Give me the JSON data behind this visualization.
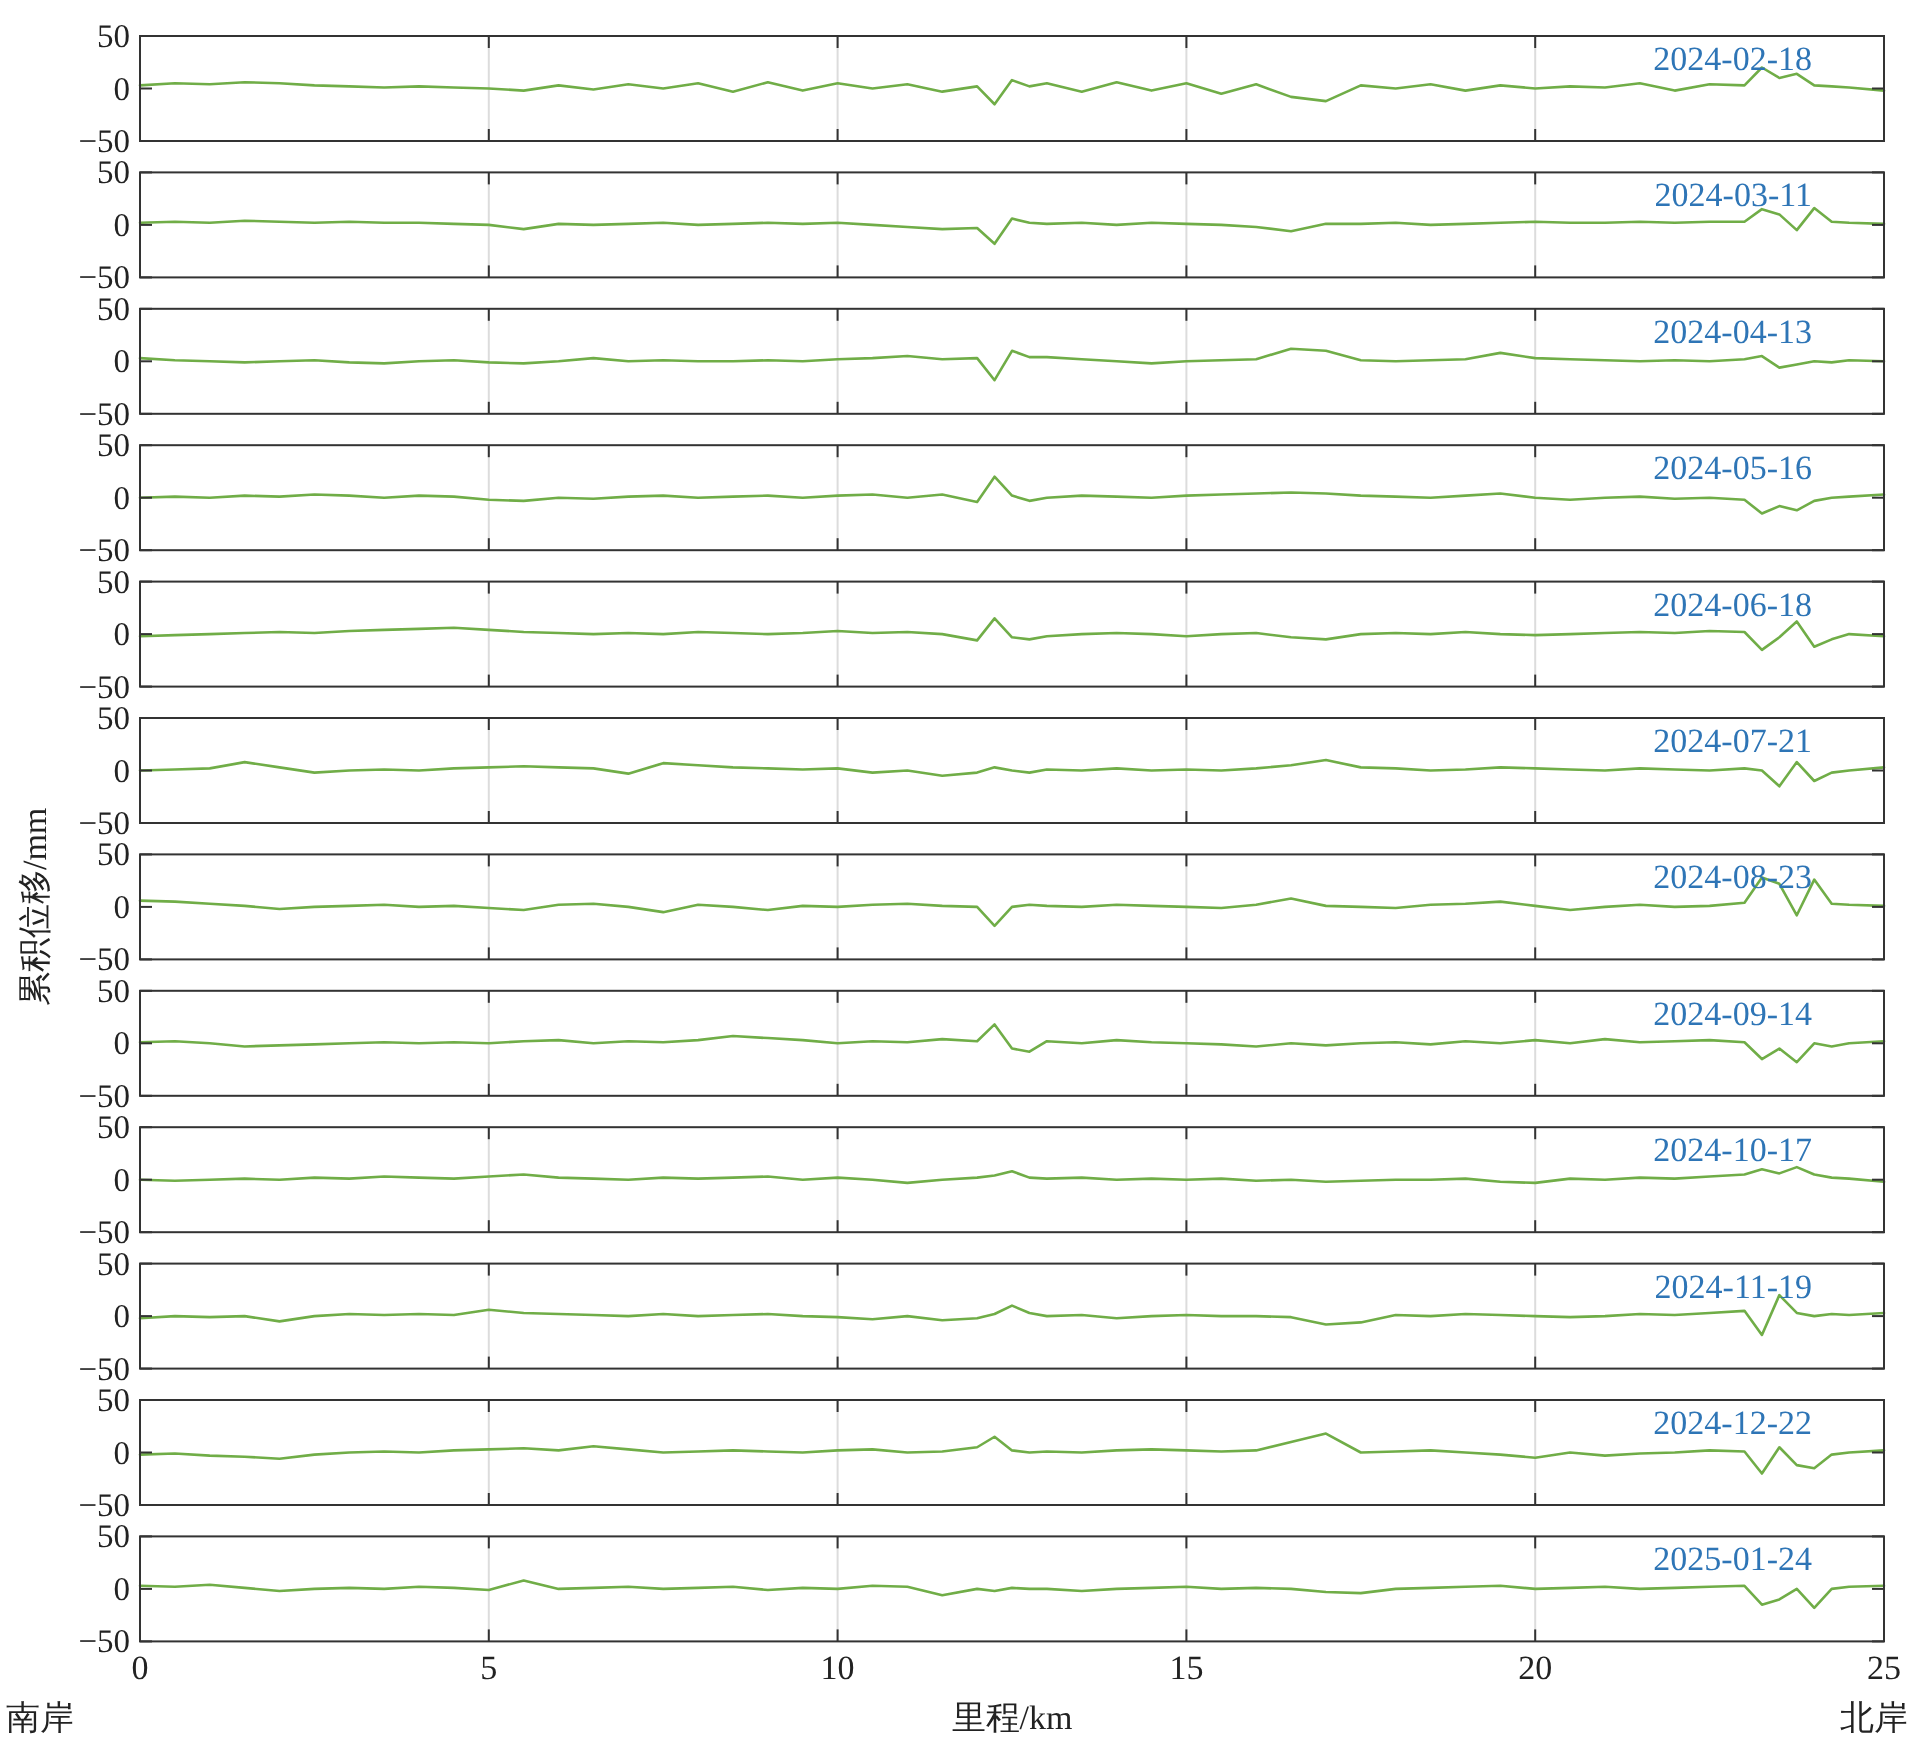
{
  "chart_data": [
    {
      "type": "line",
      "x": [
        0,
        0.5,
        1,
        1.5,
        2,
        2.5,
        3,
        3.5,
        4,
        4.5,
        5,
        5.5,
        6,
        6.5,
        7,
        7.5,
        8,
        8.5,
        9,
        9.5,
        10,
        10.5,
        11,
        11.5,
        12,
        12.25,
        12.5,
        12.75,
        13,
        13.5,
        14,
        14.5,
        15,
        15.5,
        16,
        16.5,
        17,
        17.5,
        18,
        18.5,
        19,
        19.5,
        20,
        20.5,
        21,
        21.5,
        22,
        22.5,
        23,
        23.25,
        23.5,
        23.75,
        24,
        24.25,
        24.5,
        25
      ],
      "xlim": [
        0,
        25
      ],
      "ylim": [
        -50,
        50
      ],
      "xticks": [
        0,
        5,
        10,
        15,
        20,
        25
      ],
      "yticks": [
        -50,
        0,
        50
      ],
      "grid": "x",
      "tick_labels": "y",
      "annotations": [
        "2024-02-18"
      ],
      "series": [
        {
          "color": "#70ad47",
          "values": [
            3,
            5,
            4,
            6,
            5,
            3,
            2,
            1,
            2,
            1,
            0,
            -2,
            3,
            -1,
            4,
            0,
            5,
            -3,
            6,
            -2,
            5,
            0,
            4,
            -3,
            2,
            -15,
            8,
            2,
            5,
            -3,
            6,
            -2,
            5,
            -5,
            4,
            -8,
            -12,
            3,
            0,
            4,
            -2,
            3,
            0,
            2,
            1,
            5,
            -2,
            4,
            3,
            20,
            10,
            14,
            3,
            2,
            1,
            -2
          ]
        }
      ]
    },
    {
      "type": "line",
      "x": [
        0,
        0.5,
        1,
        1.5,
        2,
        2.5,
        3,
        3.5,
        4,
        4.5,
        5,
        5.5,
        6,
        6.5,
        7,
        7.5,
        8,
        8.5,
        9,
        9.5,
        10,
        10.5,
        11,
        11.5,
        12,
        12.25,
        12.5,
        12.75,
        13,
        13.5,
        14,
        14.5,
        15,
        15.5,
        16,
        16.5,
        17,
        17.5,
        18,
        18.5,
        19,
        19.5,
        20,
        20.5,
        21,
        21.5,
        22,
        22.5,
        23,
        23.25,
        23.5,
        23.75,
        24,
        24.25,
        24.5,
        25
      ],
      "xlim": [
        0,
        25
      ],
      "ylim": [
        -50,
        50
      ],
      "xticks": [
        0,
        5,
        10,
        15,
        20,
        25
      ],
      "yticks": [
        -50,
        0,
        50
      ],
      "grid": "x",
      "tick_labels": "y",
      "annotations": [
        "2024-03-11"
      ],
      "series": [
        {
          "color": "#70ad47",
          "values": [
            2,
            3,
            2,
            4,
            3,
            2,
            3,
            2,
            2,
            1,
            0,
            -4,
            1,
            0,
            1,
            2,
            0,
            1,
            2,
            1,
            2,
            0,
            -2,
            -4,
            -3,
            -18,
            6,
            2,
            1,
            2,
            0,
            2,
            1,
            0,
            -2,
            -6,
            1,
            1,
            2,
            0,
            1,
            2,
            3,
            2,
            2,
            3,
            2,
            3,
            3,
            15,
            10,
            -5,
            16,
            3,
            2,
            1
          ]
        }
      ]
    },
    {
      "type": "line",
      "x": [
        0,
        0.5,
        1,
        1.5,
        2,
        2.5,
        3,
        3.5,
        4,
        4.5,
        5,
        5.5,
        6,
        6.5,
        7,
        7.5,
        8,
        8.5,
        9,
        9.5,
        10,
        10.5,
        11,
        11.5,
        12,
        12.25,
        12.5,
        12.75,
        13,
        13.5,
        14,
        14.5,
        15,
        15.5,
        16,
        16.5,
        17,
        17.5,
        18,
        18.5,
        19,
        19.5,
        20,
        20.5,
        21,
        21.5,
        22,
        22.5,
        23,
        23.25,
        23.5,
        23.75,
        24,
        24.25,
        24.5,
        25
      ],
      "xlim": [
        0,
        25
      ],
      "ylim": [
        -50,
        50
      ],
      "xticks": [
        0,
        5,
        10,
        15,
        20,
        25
      ],
      "yticks": [
        -50,
        0,
        50
      ],
      "grid": "x",
      "tick_labels": "y",
      "annotations": [
        "2024-04-13"
      ],
      "series": [
        {
          "color": "#70ad47",
          "values": [
            3,
            1,
            0,
            -1,
            0,
            1,
            -1,
            -2,
            0,
            1,
            -1,
            -2,
            0,
            3,
            0,
            1,
            0,
            0,
            1,
            0,
            2,
            3,
            5,
            2,
            3,
            -18,
            10,
            4,
            4,
            2,
            0,
            -2,
            0,
            1,
            2,
            12,
            10,
            1,
            0,
            1,
            2,
            8,
            3,
            2,
            1,
            0,
            1,
            0,
            2,
            5,
            -6,
            -3,
            0,
            -1,
            1,
            0
          ]
        }
      ]
    },
    {
      "type": "line",
      "x": [
        0,
        0.5,
        1,
        1.5,
        2,
        2.5,
        3,
        3.5,
        4,
        4.5,
        5,
        5.5,
        6,
        6.5,
        7,
        7.5,
        8,
        8.5,
        9,
        9.5,
        10,
        10.5,
        11,
        11.5,
        12,
        12.25,
        12.5,
        12.75,
        13,
        13.5,
        14,
        14.5,
        15,
        15.5,
        16,
        16.5,
        17,
        17.5,
        18,
        18.5,
        19,
        19.5,
        20,
        20.5,
        21,
        21.5,
        22,
        22.5,
        23,
        23.25,
        23.5,
        23.75,
        24,
        24.25,
        24.5,
        25
      ],
      "xlim": [
        0,
        25
      ],
      "ylim": [
        -50,
        50
      ],
      "xticks": [
        0,
        5,
        10,
        15,
        20,
        25
      ],
      "yticks": [
        -50,
        0,
        50
      ],
      "grid": "x",
      "tick_labels": "y",
      "annotations": [
        "2024-05-16"
      ],
      "series": [
        {
          "color": "#70ad47",
          "values": [
            0,
            1,
            0,
            2,
            1,
            3,
            2,
            0,
            2,
            1,
            -2,
            -3,
            0,
            -1,
            1,
            2,
            0,
            1,
            2,
            0,
            2,
            3,
            0,
            3,
            -4,
            20,
            2,
            -3,
            0,
            2,
            1,
            0,
            2,
            3,
            4,
            5,
            4,
            2,
            1,
            0,
            2,
            4,
            0,
            -2,
            0,
            1,
            -1,
            0,
            -2,
            -15,
            -8,
            -12,
            -3,
            0,
            1,
            3
          ]
        }
      ]
    },
    {
      "type": "line",
      "x": [
        0,
        0.5,
        1,
        1.5,
        2,
        2.5,
        3,
        3.5,
        4,
        4.5,
        5,
        5.5,
        6,
        6.5,
        7,
        7.5,
        8,
        8.5,
        9,
        9.5,
        10,
        10.5,
        11,
        11.5,
        12,
        12.25,
        12.5,
        12.75,
        13,
        13.5,
        14,
        14.5,
        15,
        15.5,
        16,
        16.5,
        17,
        17.5,
        18,
        18.5,
        19,
        19.5,
        20,
        20.5,
        21,
        21.5,
        22,
        22.5,
        23,
        23.25,
        23.5,
        23.75,
        24,
        24.25,
        24.5,
        25
      ],
      "xlim": [
        0,
        25
      ],
      "ylim": [
        -50,
        50
      ],
      "xticks": [
        0,
        5,
        10,
        15,
        20,
        25
      ],
      "yticks": [
        -50,
        0,
        50
      ],
      "grid": "x",
      "tick_labels": "y",
      "annotations": [
        "2024-06-18"
      ],
      "series": [
        {
          "color": "#70ad47",
          "values": [
            -2,
            -1,
            0,
            1,
            2,
            1,
            3,
            4,
            5,
            6,
            4,
            2,
            1,
            0,
            1,
            0,
            2,
            1,
            0,
            1,
            3,
            1,
            2,
            0,
            -6,
            15,
            -3,
            -5,
            -2,
            0,
            1,
            0,
            -2,
            0,
            1,
            -3,
            -5,
            0,
            1,
            0,
            2,
            0,
            -1,
            0,
            1,
            2,
            1,
            3,
            2,
            -15,
            -3,
            12,
            -12,
            -5,
            0,
            -2
          ]
        }
      ]
    },
    {
      "type": "line",
      "x": [
        0,
        0.5,
        1,
        1.5,
        2,
        2.5,
        3,
        3.5,
        4,
        4.5,
        5,
        5.5,
        6,
        6.5,
        7,
        7.5,
        8,
        8.5,
        9,
        9.5,
        10,
        10.5,
        11,
        11.5,
        12,
        12.25,
        12.5,
        12.75,
        13,
        13.5,
        14,
        14.5,
        15,
        15.5,
        16,
        16.5,
        17,
        17.5,
        18,
        18.5,
        19,
        19.5,
        20,
        20.5,
        21,
        21.5,
        22,
        22.5,
        23,
        23.25,
        23.5,
        23.75,
        24,
        24.25,
        24.5,
        25
      ],
      "xlim": [
        0,
        25
      ],
      "ylim": [
        -50,
        50
      ],
      "xticks": [
        0,
        5,
        10,
        15,
        20,
        25
      ],
      "yticks": [
        -50,
        0,
        50
      ],
      "grid": "x",
      "tick_labels": "y",
      "annotations": [
        "2024-07-21"
      ],
      "series": [
        {
          "color": "#70ad47",
          "values": [
            0,
            1,
            2,
            8,
            3,
            -2,
            0,
            1,
            0,
            2,
            3,
            4,
            3,
            2,
            -3,
            7,
            5,
            3,
            2,
            1,
            2,
            -2,
            0,
            -5,
            -2,
            3,
            0,
            -2,
            1,
            0,
            2,
            0,
            1,
            0,
            2,
            5,
            10,
            3,
            2,
            0,
            1,
            3,
            2,
            1,
            0,
            2,
            1,
            0,
            2,
            0,
            -15,
            8,
            -10,
            -2,
            0,
            3
          ]
        }
      ]
    },
    {
      "type": "line",
      "x": [
        0,
        0.5,
        1,
        1.5,
        2,
        2.5,
        3,
        3.5,
        4,
        4.5,
        5,
        5.5,
        6,
        6.5,
        7,
        7.5,
        8,
        8.5,
        9,
        9.5,
        10,
        10.5,
        11,
        11.5,
        12,
        12.25,
        12.5,
        12.75,
        13,
        13.5,
        14,
        14.5,
        15,
        15.5,
        16,
        16.5,
        17,
        17.5,
        18,
        18.5,
        19,
        19.5,
        20,
        20.5,
        21,
        21.5,
        22,
        22.5,
        23,
        23.25,
        23.5,
        23.75,
        24,
        24.25,
        24.5,
        25
      ],
      "xlim": [
        0,
        25
      ],
      "ylim": [
        -50,
        50
      ],
      "xticks": [
        0,
        5,
        10,
        15,
        20,
        25
      ],
      "yticks": [
        -50,
        0,
        50
      ],
      "grid": "x",
      "tick_labels": "y",
      "ylabel": "累积位移/mm",
      "annotations": [
        "2024-08-23"
      ],
      "series": [
        {
          "color": "#70ad47",
          "values": [
            6,
            5,
            3,
            1,
            -2,
            0,
            1,
            2,
            0,
            1,
            -1,
            -3,
            2,
            3,
            0,
            -5,
            2,
            0,
            -3,
            1,
            0,
            2,
            3,
            1,
            0,
            -18,
            0,
            2,
            1,
            0,
            2,
            1,
            0,
            -1,
            2,
            8,
            1,
            0,
            -1,
            2,
            3,
            5,
            1,
            -3,
            0,
            2,
            0,
            1,
            4,
            28,
            22,
            -8,
            26,
            3,
            2,
            1
          ]
        }
      ]
    },
    {
      "type": "line",
      "x": [
        0,
        0.5,
        1,
        1.5,
        2,
        2.5,
        3,
        3.5,
        4,
        4.5,
        5,
        5.5,
        6,
        6.5,
        7,
        7.5,
        8,
        8.5,
        9,
        9.5,
        10,
        10.5,
        11,
        11.5,
        12,
        12.25,
        12.5,
        12.75,
        13,
        13.5,
        14,
        14.5,
        15,
        15.5,
        16,
        16.5,
        17,
        17.5,
        18,
        18.5,
        19,
        19.5,
        20,
        20.5,
        21,
        21.5,
        22,
        22.5,
        23,
        23.25,
        23.5,
        23.75,
        24,
        24.25,
        24.5,
        25
      ],
      "xlim": [
        0,
        25
      ],
      "ylim": [
        -50,
        50
      ],
      "xticks": [
        0,
        5,
        10,
        15,
        20,
        25
      ],
      "yticks": [
        -50,
        0,
        50
      ],
      "grid": "x",
      "tick_labels": "y",
      "annotations": [
        "2024-09-14"
      ],
      "series": [
        {
          "color": "#70ad47",
          "values": [
            1,
            2,
            0,
            -3,
            -2,
            -1,
            0,
            1,
            0,
            1,
            0,
            2,
            3,
            0,
            2,
            1,
            3,
            7,
            5,
            3,
            0,
            2,
            1,
            4,
            2,
            18,
            -5,
            -8,
            2,
            0,
            3,
            1,
            0,
            -1,
            -3,
            0,
            -2,
            0,
            1,
            -1,
            2,
            0,
            3,
            0,
            4,
            1,
            2,
            3,
            1,
            -15,
            -5,
            -18,
            0,
            -3,
            0,
            2
          ]
        }
      ]
    },
    {
      "type": "line",
      "x": [
        0,
        0.5,
        1,
        1.5,
        2,
        2.5,
        3,
        3.5,
        4,
        4.5,
        5,
        5.5,
        6,
        6.5,
        7,
        7.5,
        8,
        8.5,
        9,
        9.5,
        10,
        10.5,
        11,
        11.5,
        12,
        12.25,
        12.5,
        12.75,
        13,
        13.5,
        14,
        14.5,
        15,
        15.5,
        16,
        16.5,
        17,
        17.5,
        18,
        18.5,
        19,
        19.5,
        20,
        20.5,
        21,
        21.5,
        22,
        22.5,
        23,
        23.25,
        23.5,
        23.75,
        24,
        24.25,
        24.5,
        25
      ],
      "xlim": [
        0,
        25
      ],
      "ylim": [
        -50,
        50
      ],
      "xticks": [
        0,
        5,
        10,
        15,
        20,
        25
      ],
      "yticks": [
        -50,
        0,
        50
      ],
      "grid": "x",
      "tick_labels": "y",
      "annotations": [
        "2024-10-17"
      ],
      "series": [
        {
          "color": "#70ad47",
          "values": [
            0,
            -1,
            0,
            1,
            0,
            2,
            1,
            3,
            2,
            1,
            3,
            5,
            2,
            1,
            0,
            2,
            1,
            2,
            3,
            0,
            2,
            0,
            -3,
            0,
            2,
            4,
            8,
            2,
            1,
            2,
            0,
            1,
            0,
            1,
            -1,
            0,
            -2,
            -1,
            0,
            0,
            1,
            -2,
            -3,
            1,
            0,
            2,
            1,
            3,
            5,
            10,
            6,
            12,
            5,
            2,
            1,
            -2
          ]
        }
      ]
    },
    {
      "type": "line",
      "x": [
        0,
        0.5,
        1,
        1.5,
        2,
        2.5,
        3,
        3.5,
        4,
        4.5,
        5,
        5.5,
        6,
        6.5,
        7,
        7.5,
        8,
        8.5,
        9,
        9.5,
        10,
        10.5,
        11,
        11.5,
        12,
        12.25,
        12.5,
        12.75,
        13,
        13.5,
        14,
        14.5,
        15,
        15.5,
        16,
        16.5,
        17,
        17.5,
        18,
        18.5,
        19,
        19.5,
        20,
        20.5,
        21,
        21.5,
        22,
        22.5,
        23,
        23.25,
        23.5,
        23.75,
        24,
        24.25,
        24.5,
        25
      ],
      "xlim": [
        0,
        25
      ],
      "ylim": [
        -50,
        50
      ],
      "xticks": [
        0,
        5,
        10,
        15,
        20,
        25
      ],
      "yticks": [
        -50,
        0,
        50
      ],
      "grid": "x",
      "tick_labels": "y",
      "annotations": [
        "2024-11-19"
      ],
      "series": [
        {
          "color": "#70ad47",
          "values": [
            -2,
            0,
            -1,
            0,
            -5,
            0,
            2,
            1,
            2,
            1,
            6,
            3,
            2,
            1,
            0,
            2,
            0,
            1,
            2,
            0,
            -1,
            -3,
            0,
            -4,
            -2,
            2,
            10,
            3,
            0,
            1,
            -2,
            0,
            1,
            0,
            0,
            -1,
            -8,
            -6,
            1,
            0,
            2,
            1,
            0,
            -1,
            0,
            2,
            1,
            3,
            5,
            -18,
            20,
            3,
            0,
            2,
            1,
            3
          ]
        }
      ]
    },
    {
      "type": "line",
      "x": [
        0,
        0.5,
        1,
        1.5,
        2,
        2.5,
        3,
        3.5,
        4,
        4.5,
        5,
        5.5,
        6,
        6.5,
        7,
        7.5,
        8,
        8.5,
        9,
        9.5,
        10,
        10.5,
        11,
        11.5,
        12,
        12.25,
        12.5,
        12.75,
        13,
        13.5,
        14,
        14.5,
        15,
        15.5,
        16,
        16.5,
        17,
        17.5,
        18,
        18.5,
        19,
        19.5,
        20,
        20.5,
        21,
        21.5,
        22,
        22.5,
        23,
        23.25,
        23.5,
        23.75,
        24,
        24.25,
        24.5,
        25
      ],
      "xlim": [
        0,
        25
      ],
      "ylim": [
        -50,
        50
      ],
      "xticks": [
        0,
        5,
        10,
        15,
        20,
        25
      ],
      "yticks": [
        -50,
        0,
        50
      ],
      "grid": "x",
      "tick_labels": "y",
      "annotations": [
        "2024-12-22"
      ],
      "series": [
        {
          "color": "#70ad47",
          "values": [
            -2,
            -1,
            -3,
            -4,
            -6,
            -2,
            0,
            1,
            0,
            2,
            3,
            4,
            2,
            6,
            3,
            0,
            1,
            2,
            1,
            0,
            2,
            3,
            0,
            1,
            5,
            15,
            2,
            0,
            1,
            0,
            2,
            3,
            2,
            1,
            2,
            10,
            18,
            0,
            1,
            2,
            0,
            -2,
            -5,
            0,
            -3,
            -1,
            0,
            2,
            1,
            -20,
            5,
            -12,
            -15,
            -2,
            0,
            2
          ]
        }
      ]
    },
    {
      "type": "line",
      "x": [
        0,
        0.5,
        1,
        1.5,
        2,
        2.5,
        3,
        3.5,
        4,
        4.5,
        5,
        5.5,
        6,
        6.5,
        7,
        7.5,
        8,
        8.5,
        9,
        9.5,
        10,
        10.5,
        11,
        11.5,
        12,
        12.25,
        12.5,
        12.75,
        13,
        13.5,
        14,
        14.5,
        15,
        15.5,
        16,
        16.5,
        17,
        17.5,
        18,
        18.5,
        19,
        19.5,
        20,
        20.5,
        21,
        21.5,
        22,
        22.5,
        23,
        23.25,
        23.5,
        23.75,
        24,
        24.25,
        24.5,
        25
      ],
      "xlim": [
        0,
        25
      ],
      "ylim": [
        -50,
        50
      ],
      "xticks": [
        0,
        5,
        10,
        15,
        20,
        25
      ],
      "yticks": [
        -50,
        0,
        50
      ],
      "grid": "x",
      "xlabel": "里程/km",
      "annotations": [
        "2025-01-24",
        "南岸",
        "北岸"
      ],
      "series": [
        {
          "color": "#70ad47",
          "values": [
            3,
            2,
            4,
            1,
            -2,
            0,
            1,
            0,
            2,
            1,
            -1,
            8,
            0,
            1,
            2,
            0,
            1,
            2,
            -1,
            1,
            0,
            3,
            2,
            -6,
            0,
            -2,
            1,
            0,
            0,
            -2,
            0,
            1,
            2,
            0,
            1,
            0,
            -3,
            -4,
            0,
            1,
            2,
            3,
            0,
            1,
            2,
            0,
            1,
            2,
            3,
            -15,
            -10,
            0,
            -18,
            0,
            2,
            3
          ]
        }
      ]
    }
  ]
}
